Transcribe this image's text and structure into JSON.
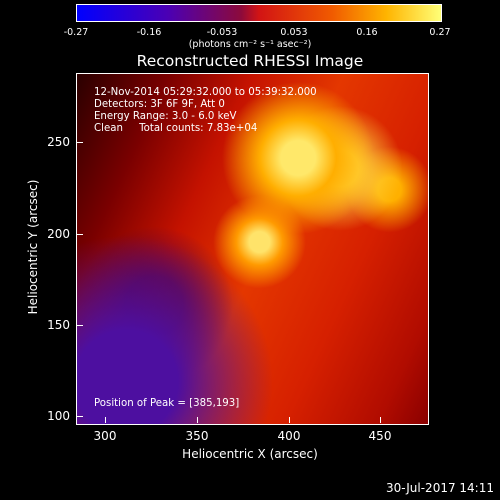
{
  "colorbar": {
    "ticks": [
      "-0.27",
      "-0.16",
      "-0.053",
      "0.053",
      "0.16",
      "0.27"
    ],
    "units": "(photons cm⁻² s⁻¹ asec⁻²)"
  },
  "title": "Reconstructed RHESSI Image",
  "annotations": {
    "time_range": "12-Nov-2014 05:29:32.000 to 05:39:32.000",
    "detectors": "Detectors: 3F 6F 9F, Att 0",
    "energy": "Energy Range: 3.0 - 6.0 keV",
    "method": "Clean     Total counts: 7.83e+04",
    "peak": "Position of Peak = [385,193]"
  },
  "axes": {
    "y_ticks": [
      "250",
      "200",
      "150",
      "100"
    ],
    "x_ticks": [
      "300",
      "350",
      "400",
      "450"
    ],
    "xlabel": "Heliocentric X (arcsec)",
    "ylabel": "Heliocentric Y (arcsec)"
  },
  "timestamp": "30-Jul-2017 14:11",
  "colors": {
    "colorbar_low": "#0000ff",
    "colorbar_high": "#ffff78",
    "background": "#000000"
  }
}
